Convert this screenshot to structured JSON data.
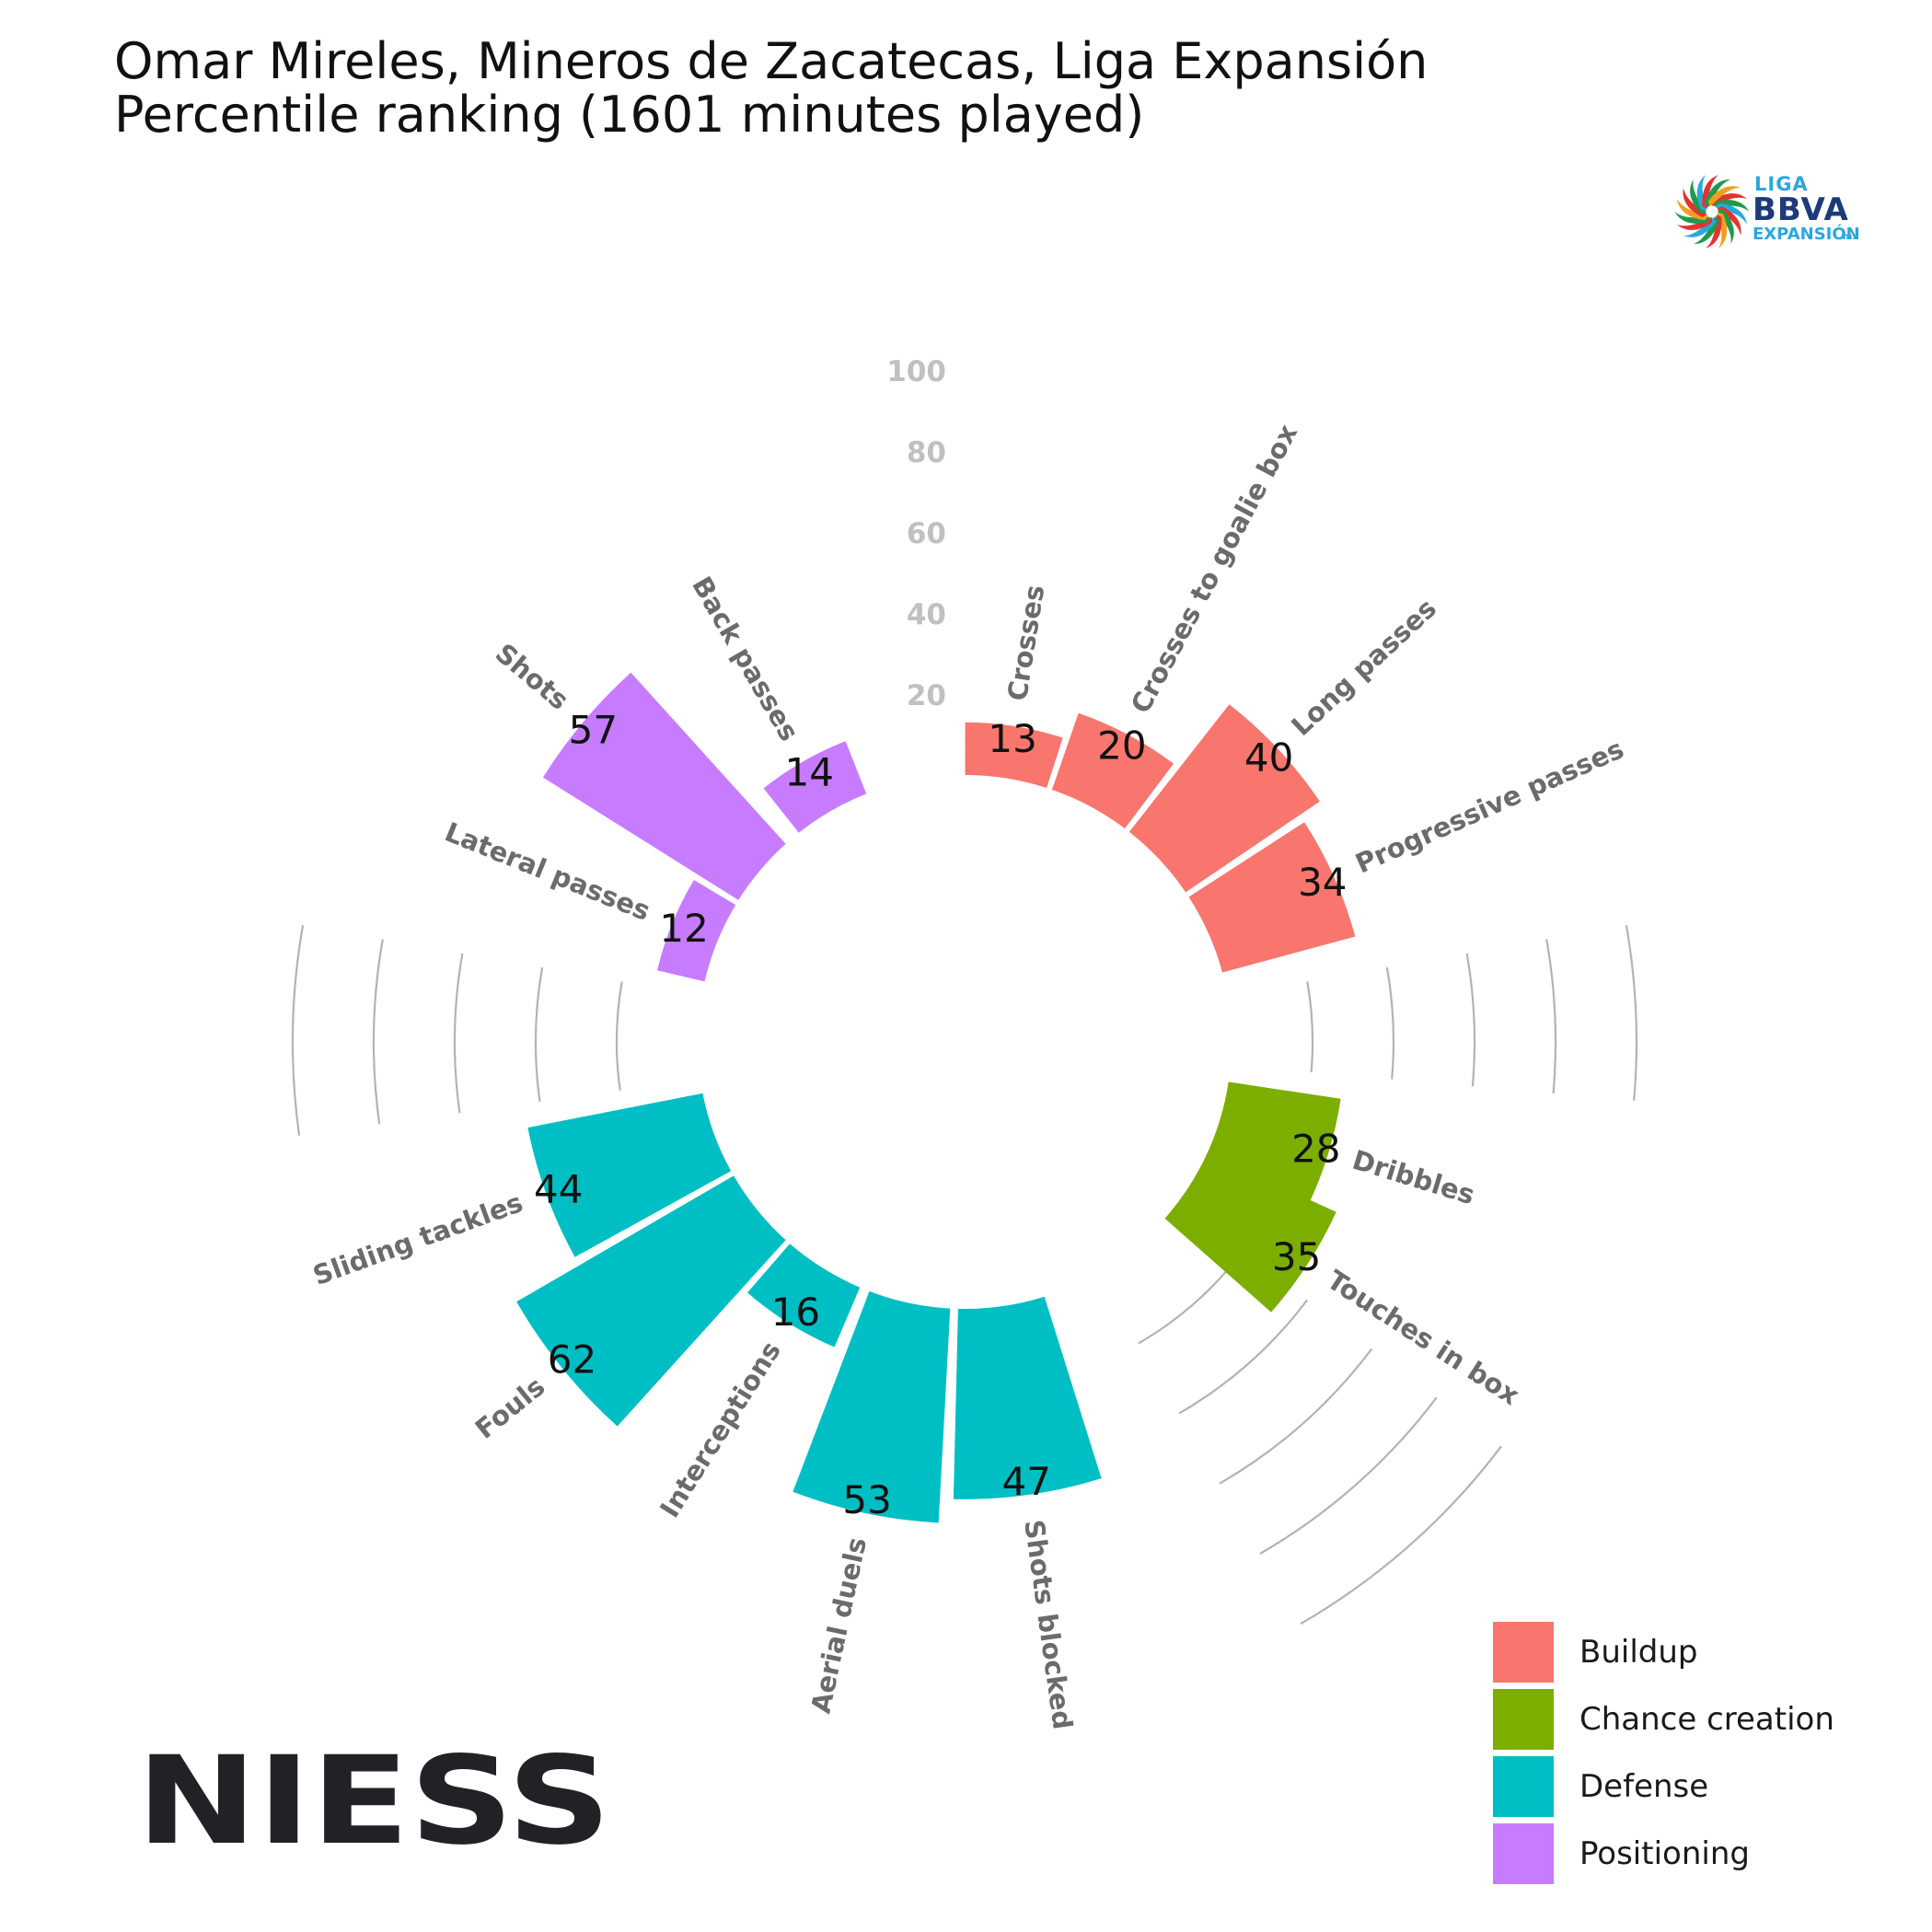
{
  "title": {
    "line1": "Omar Mireles, Mineros de Zacatecas, Liga Expansión",
    "line2": "Percentile ranking (1601 minutes played)"
  },
  "logo": {
    "line1": "LIGA",
    "line2": "BBVA",
    "line3": "EXPANSIÓN",
    "line4": "mx"
  },
  "brand": "NIESS",
  "legend": [
    {
      "label": "Buildup",
      "color": "#F8766D"
    },
    {
      "label": "Chance creation",
      "color": "#7CAE00"
    },
    {
      "label": "Defense",
      "color": "#00BFC4"
    },
    {
      "label": "Positioning",
      "color": "#C77CFF"
    }
  ],
  "chart_data": {
    "type": "bar",
    "subtype": "polar",
    "radial_ticks": [
      20,
      40,
      60,
      80,
      100
    ],
    "ylim": [
      0,
      100
    ],
    "categories": [
      "Crosses",
      "Crosses to goalie box",
      "Long passes",
      "Progressive passes",
      "Dribbles",
      "Touches in box",
      "Shots blocked",
      "Aerial duels",
      "Interceptions",
      "Fouls",
      "Sliding tackles",
      "Lateral passes",
      "Shots",
      "Back passes"
    ],
    "values": [
      13,
      20,
      40,
      34,
      28,
      35,
      47,
      53,
      16,
      62,
      44,
      12,
      57,
      14
    ],
    "groups": [
      "Buildup",
      "Buildup",
      "Buildup",
      "Buildup",
      "Chance creation",
      "Chance creation",
      "Defense",
      "Defense",
      "Defense",
      "Defense",
      "Defense",
      "Positioning",
      "Positioning",
      "Positioning"
    ],
    "legend_position": "bottom-right"
  }
}
